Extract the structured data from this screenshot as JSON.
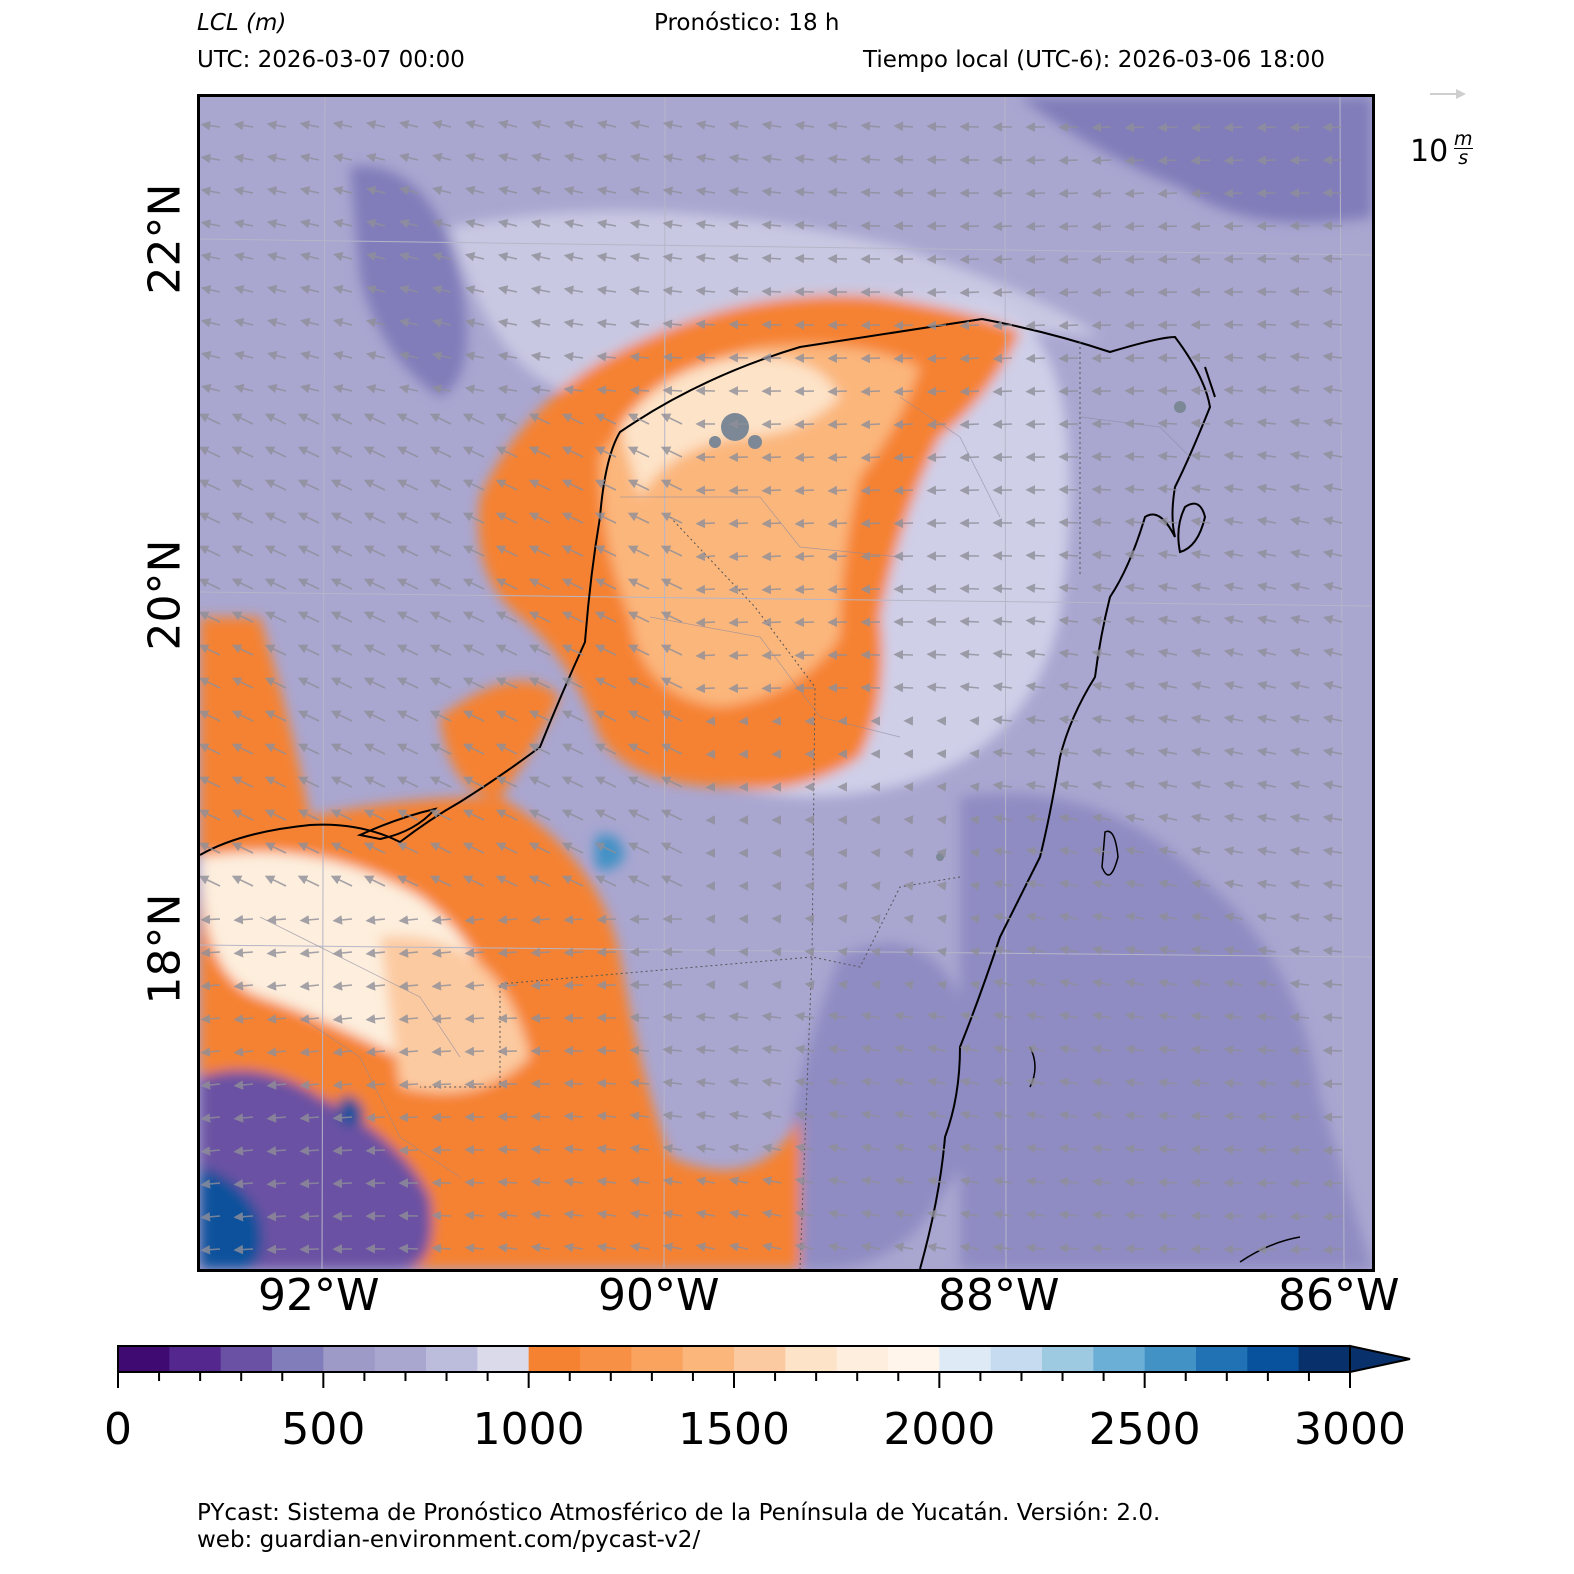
{
  "header": {
    "variable_name": "LCL",
    "variable_unit": "(m)",
    "forecast": "Pronóstico: 18 h",
    "utc": "UTC:  2026-03-07 00:00",
    "local_time": "Tiempo local (UTC-6): 2026-03-06 18:00"
  },
  "wind_key": {
    "value": "10",
    "unit_num": "m",
    "unit_den": "s",
    "arrow_color": "#cfcfcf"
  },
  "axes": {
    "lat_labels": [
      "22°N",
      "20°N",
      "18°N"
    ],
    "lon_labels": [
      "92°W",
      "90°W",
      "88°W",
      "86°W"
    ]
  },
  "colorbar": {
    "ticks": [
      "0",
      "500",
      "1000",
      "1500",
      "2000",
      "2500",
      "3000"
    ],
    "colors": [
      "#3f0a72",
      "#54278f",
      "#6a51a3",
      "#807dba",
      "#9e9ac8",
      "#a9a6d0",
      "#bcbddc",
      "#dadaeb",
      "#f58231",
      "#f78f45",
      "#f9a35e",
      "#fbb67c",
      "#fccaa0",
      "#fde3c8",
      "#fdeedd",
      "#fff5eb",
      "#deebf7",
      "#c6dbef",
      "#9ecae1",
      "#6baed6",
      "#4292c6",
      "#2171b5",
      "#08519c",
      "#08306b"
    ],
    "extend_color": "#08306b"
  },
  "footer": {
    "line1": "PYcast: Sistema de Pronóstico Atmosférico de la Península de Yucatán. Versión: 2.0.",
    "line2": "web: guardian-environment.com/pycast-v2/"
  }
}
